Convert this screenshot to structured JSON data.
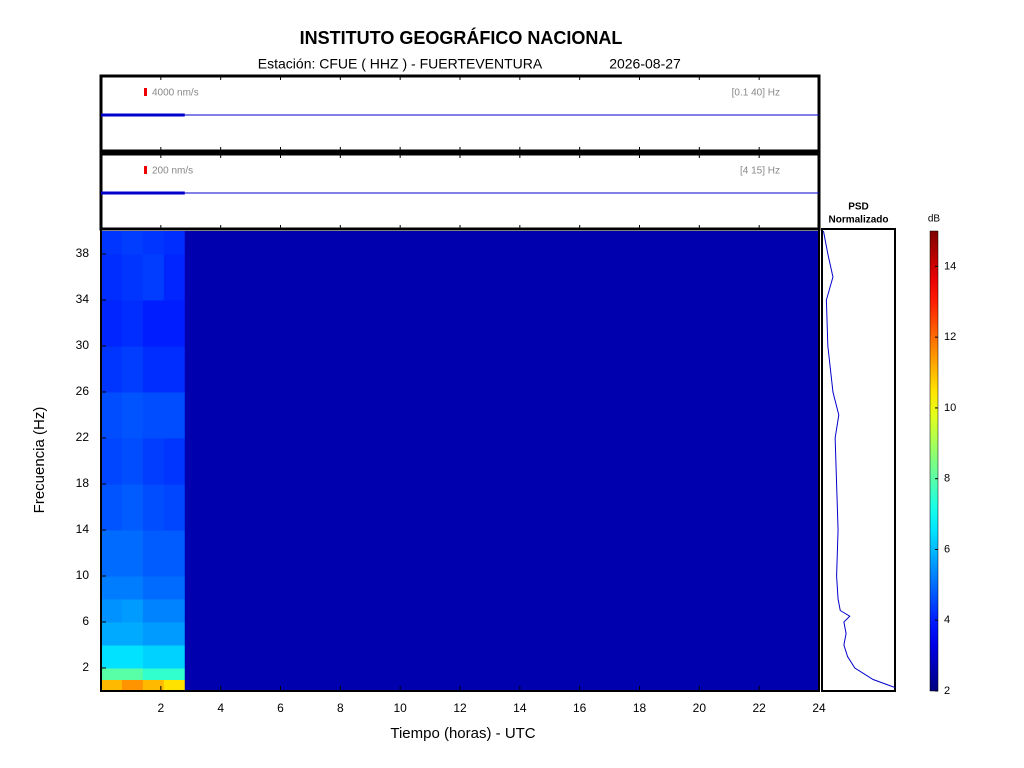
{
  "header": {
    "title": "INSTITUTO GEOGRÁFICO NACIONAL",
    "station": "Estación:  CFUE ( HHZ ) - FUERTEVENTURA",
    "date": "2026-08-27"
  },
  "chart_data": [
    {
      "type": "trace",
      "scale_label": "4000 nm/s",
      "band_label": "[0.1 40] Hz",
      "x": [
        0,
        2.8
      ],
      "values": [
        0,
        0
      ],
      "color": "#0000cc",
      "xlim": [
        0,
        24
      ]
    },
    {
      "type": "trace",
      "scale_label": "200 nm/s",
      "band_label": "[4 15] Hz",
      "x": [
        0,
        2.8
      ],
      "values": [
        0,
        0
      ],
      "color": "#0000cc",
      "xlim": [
        0,
        24
      ]
    },
    {
      "type": "heatmap",
      "xlabel": "Tiempo (horas) - UTC",
      "ylabel": "Frecuencia  (Hz)",
      "xbins": [
        0,
        0.7,
        1.4,
        2.1,
        2.8,
        24
      ],
      "ybins": [
        0,
        1,
        2,
        4,
        6,
        8,
        10,
        14,
        18,
        22,
        26,
        30,
        34,
        38,
        40
      ],
      "values": [
        [
          11,
          11.5,
          11,
          10.5,
          2.6
        ],
        [
          8,
          8,
          7.5,
          7.5,
          2.6
        ],
        [
          6.5,
          6.5,
          6.3,
          6.3,
          2.6
        ],
        [
          5.8,
          5.8,
          5.6,
          5.6,
          2.6
        ],
        [
          5.5,
          5.6,
          5.3,
          5.3,
          2.6
        ],
        [
          5.2,
          5.2,
          5,
          5,
          2.6
        ],
        [
          5,
          5,
          4.8,
          4.8,
          2.6
        ],
        [
          4.7,
          4.8,
          4.6,
          4.5,
          2.6
        ],
        [
          4.5,
          4.6,
          4.4,
          4.3,
          2.6
        ],
        [
          4.6,
          4.7,
          4.6,
          4.6,
          2.6
        ],
        [
          4.3,
          4.4,
          4.2,
          4.2,
          2.6
        ],
        [
          4.1,
          4.2,
          4,
          4,
          2.6
        ],
        [
          4.2,
          4.3,
          4.4,
          4.1,
          2.6
        ],
        [
          4.3,
          4.4,
          4.3,
          4.2,
          2.6
        ]
      ],
      "xlim": [
        0,
        24
      ],
      "xticks": [
        2,
        4,
        6,
        8,
        10,
        12,
        14,
        16,
        18,
        20,
        22,
        24
      ],
      "ylim": [
        0,
        40
      ],
      "yticks": [
        2,
        6,
        10,
        14,
        18,
        22,
        26,
        30,
        34,
        38
      ],
      "colormap": "jet",
      "colorbar": {
        "label": "dB",
        "clim": [
          2,
          15
        ],
        "ticks": [
          2,
          4,
          6,
          8,
          10,
          12,
          14
        ]
      }
    },
    {
      "type": "psd",
      "title_lines": [
        "PSD",
        "Normalizado"
      ],
      "color": "#0000cc",
      "freqs": [
        0.3,
        1,
        2,
        3,
        4,
        5,
        6,
        6.5,
        7,
        8,
        10,
        14,
        18,
        22,
        24,
        26,
        30,
        34,
        36,
        38,
        40
      ],
      "values": [
        1,
        0.7,
        0.45,
        0.35,
        0.3,
        0.33,
        0.3,
        0.38,
        0.25,
        0.22,
        0.2,
        0.22,
        0.2,
        0.18,
        0.23,
        0.15,
        0.08,
        0.06,
        0.15,
        0.08,
        0.02
      ],
      "xlim": [
        0,
        1
      ],
      "ylim": [
        0,
        40
      ]
    }
  ]
}
